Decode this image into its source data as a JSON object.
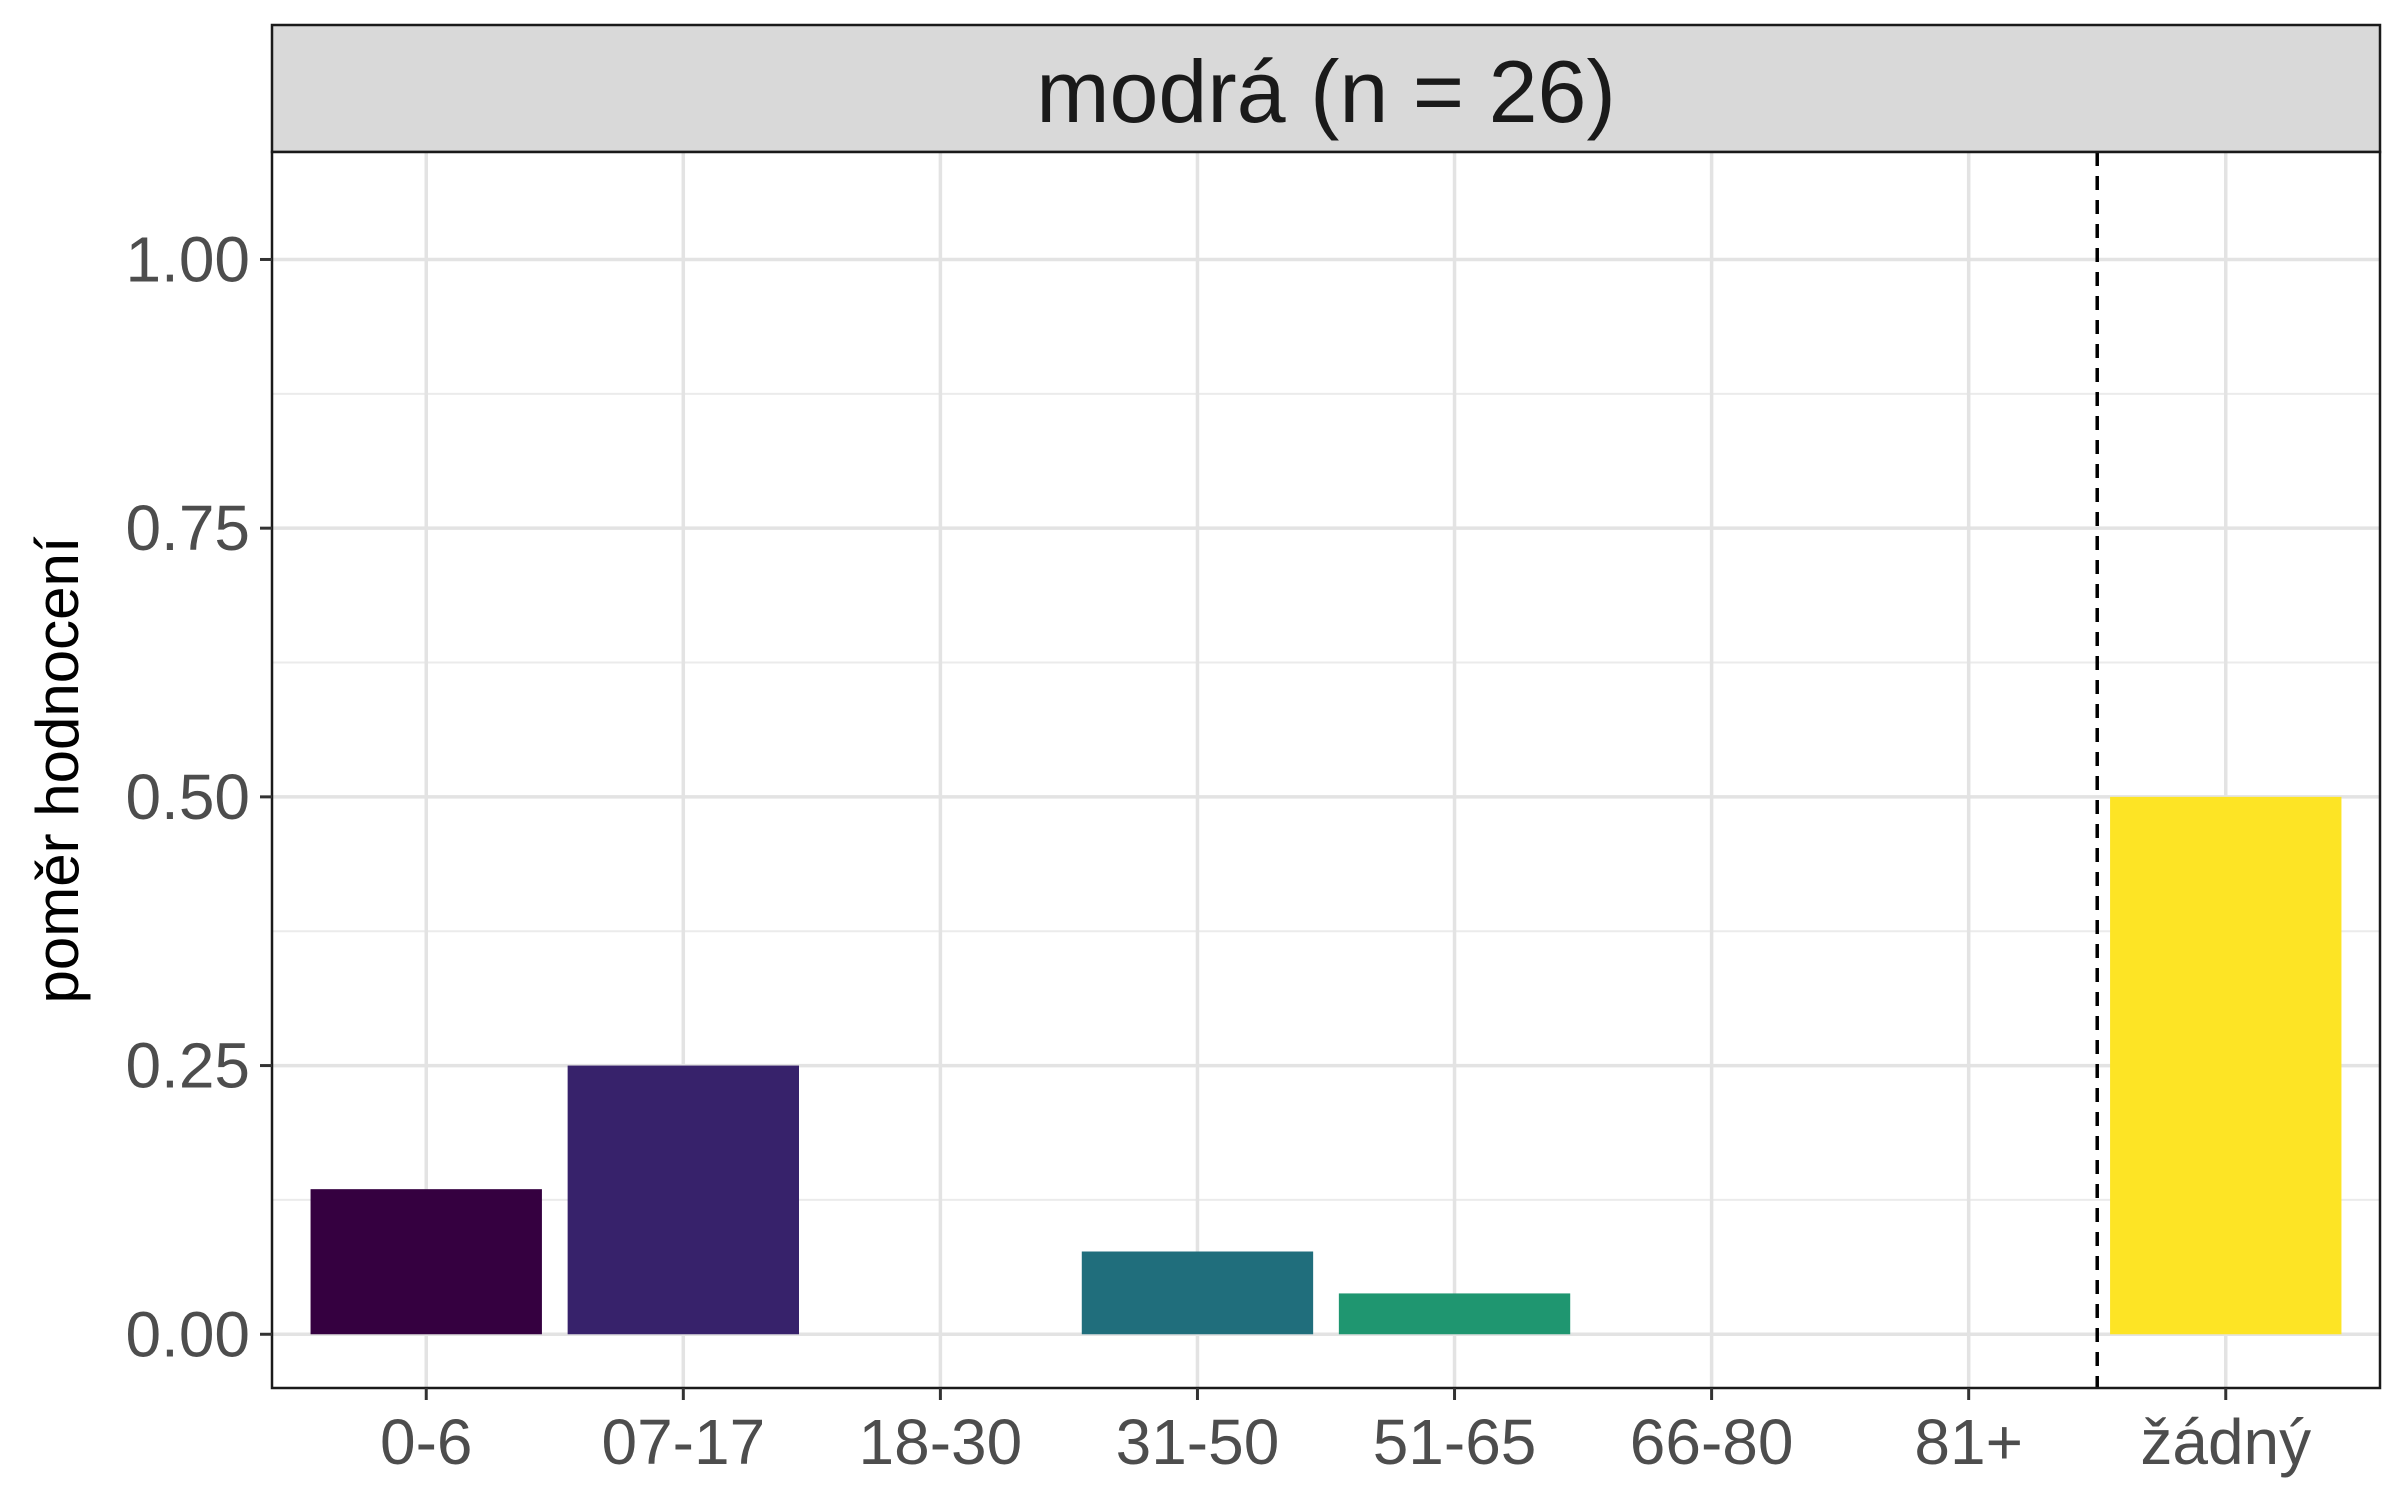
{
  "chart_data": {
    "type": "bar",
    "facet_title": "modrá (n = 26)",
    "ylabel": "poměr hodnocení",
    "xlabel": "",
    "categories": [
      "0-6",
      "07-17",
      "18-30",
      "31-50",
      "51-65",
      "66-80",
      "81+",
      "žádný"
    ],
    "values": [
      0.135,
      0.25,
      0.0,
      0.077,
      0.038,
      0.0,
      0.0,
      0.5
    ],
    "colors": [
      "#350040",
      "#37226b",
      "#2b3a78",
      "#206e7c",
      "#1f9670",
      "#5ec962",
      "#b5de2b",
      "#fde425"
    ],
    "ylim": [
      -0.05,
      1.1
    ],
    "yticks": [
      0.0,
      0.25,
      0.5,
      0.75,
      1.0
    ],
    "ytick_labels": [
      "0.00",
      "0.25",
      "0.50",
      "0.75",
      "1.00"
    ],
    "yminor": [
      0.125,
      0.375,
      0.625,
      0.875
    ],
    "reference_line": {
      "after_category": "81+",
      "style": "dashed"
    },
    "grid": true,
    "legend": "none"
  }
}
